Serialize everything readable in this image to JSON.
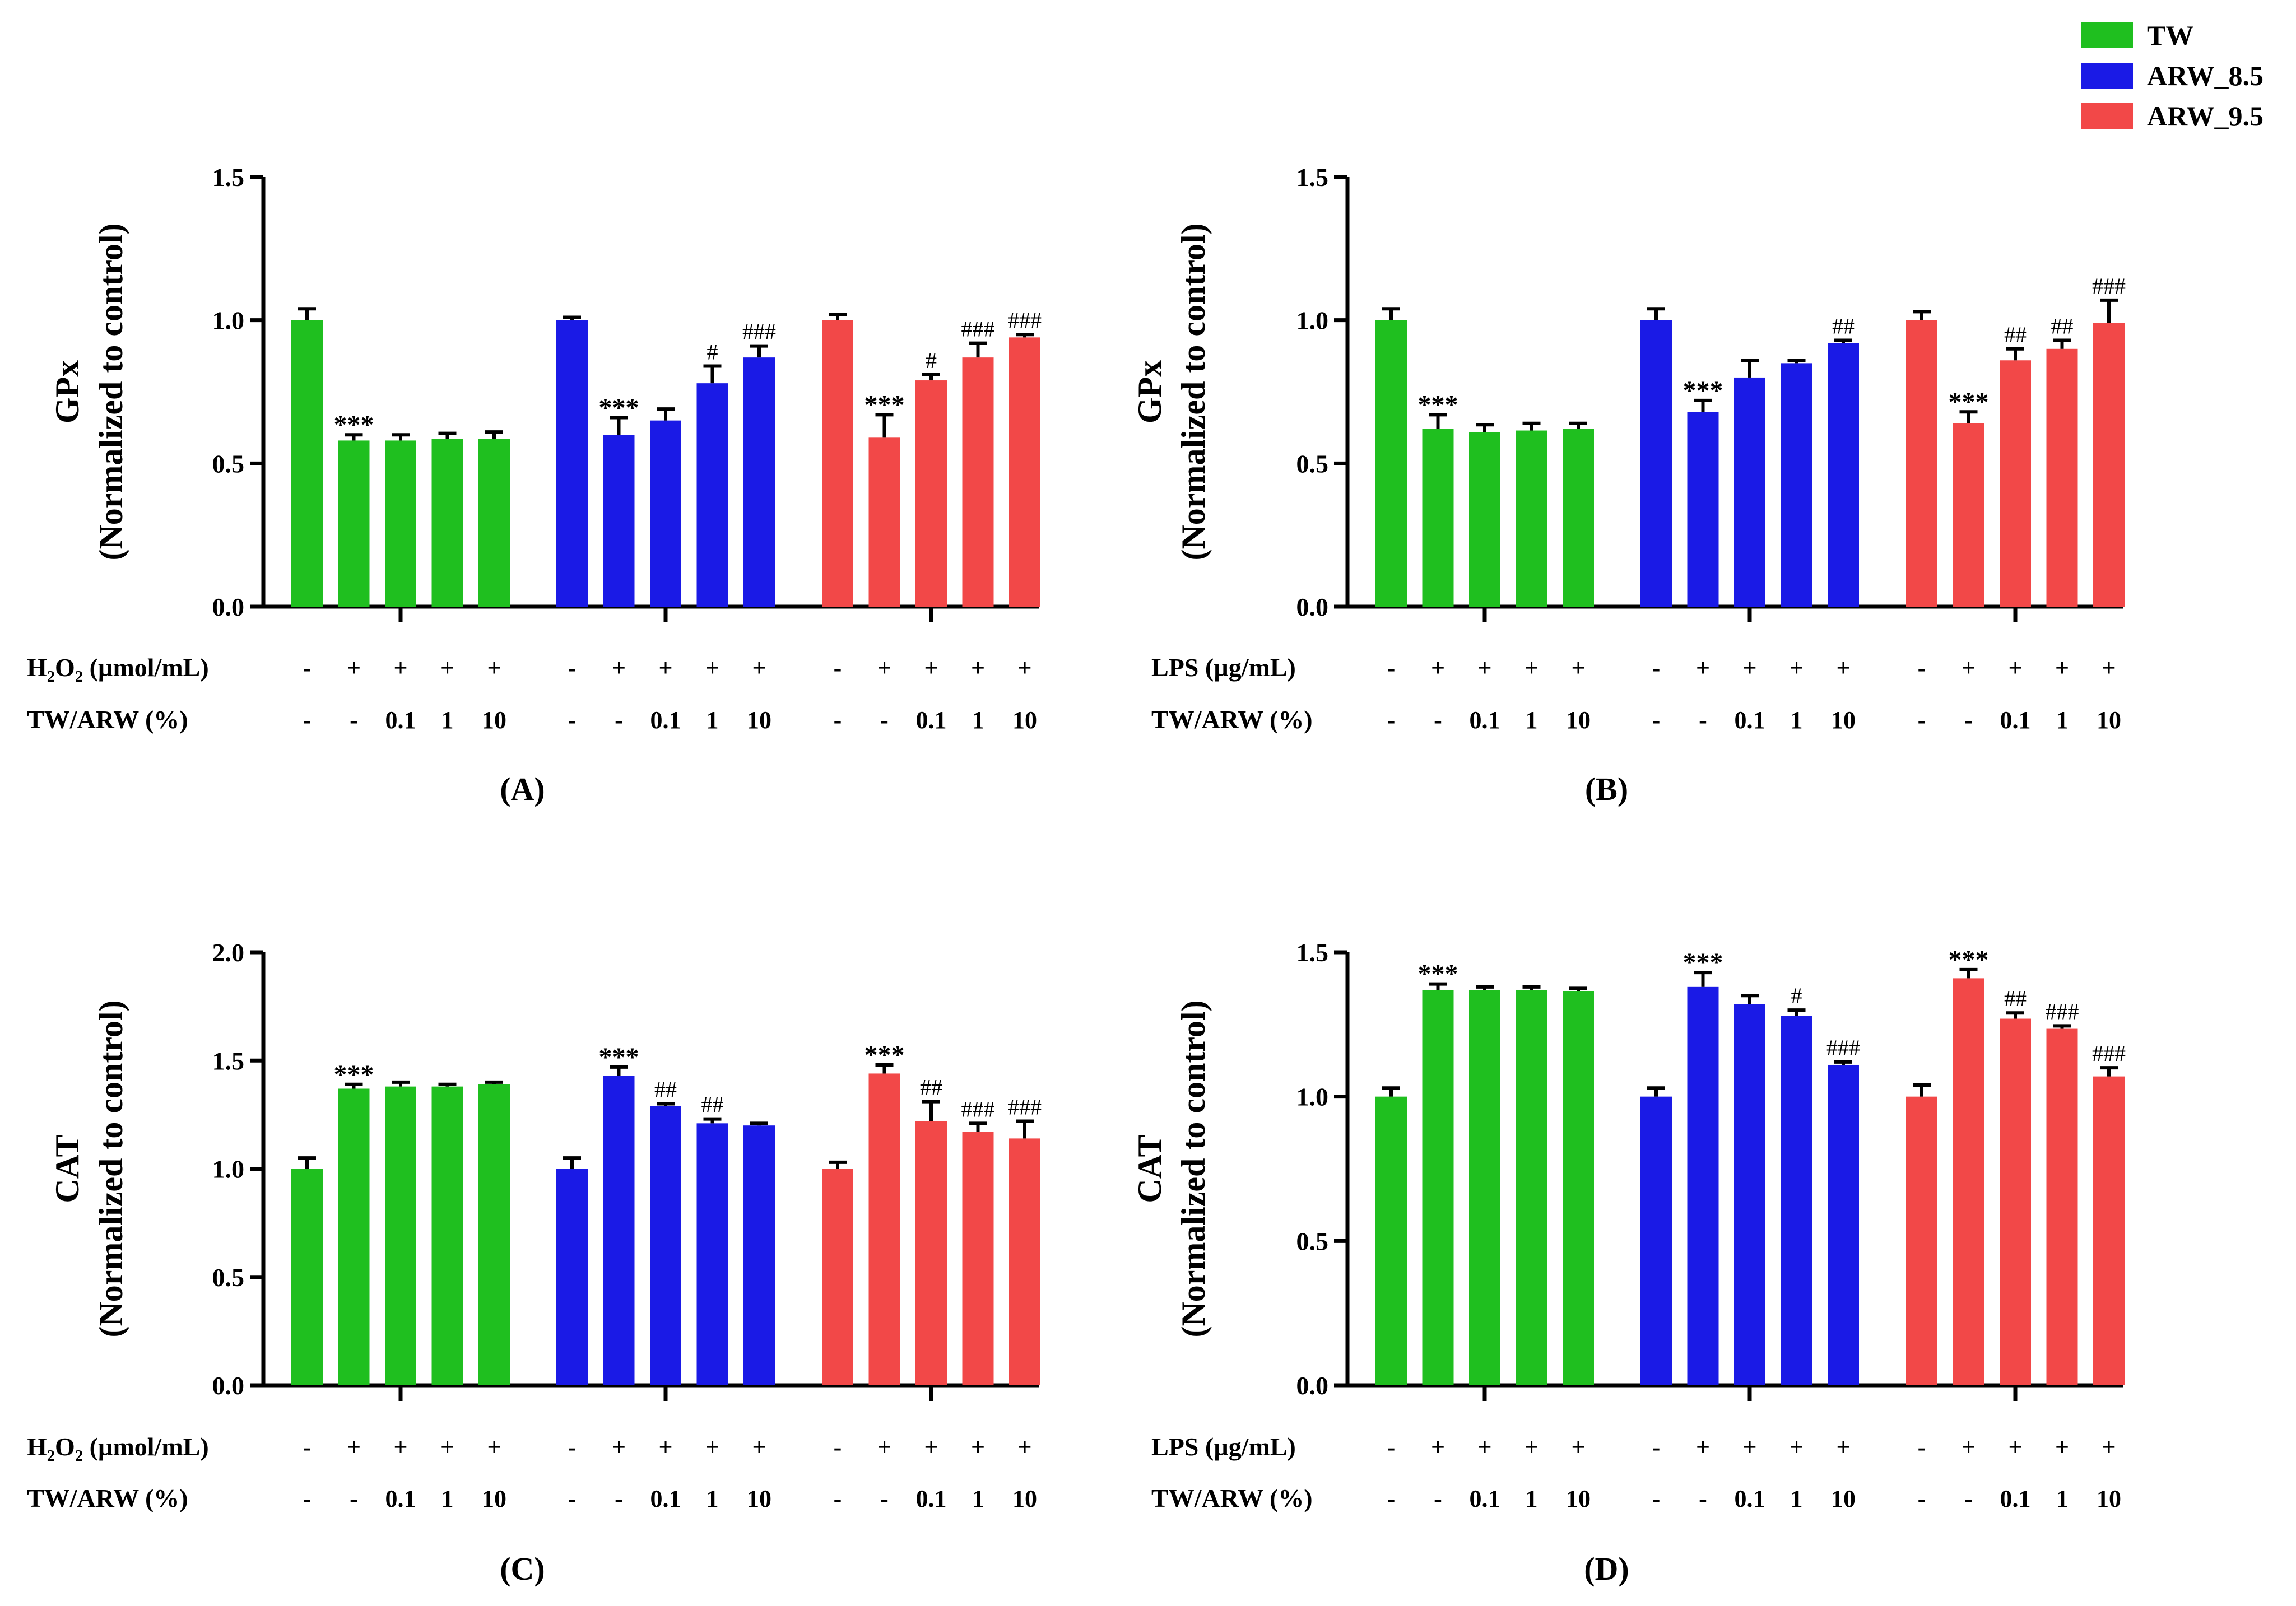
{
  "legend": [
    {
      "label": "TW",
      "color": "#1fbf1f"
    },
    {
      "label": "ARW_8.5",
      "color": "#1a1ae6"
    },
    {
      "label": "ARW_9.5",
      "color": "#f24848"
    }
  ],
  "chart_data": [
    {
      "panel": "(A)",
      "type": "bar",
      "ylabel_line1": "GPx",
      "ylabel_line2": "(Normalized to control)",
      "ylim": [
        0,
        1.5
      ],
      "yticks": [
        "0.0",
        "0.5",
        "1.0",
        "1.5"
      ],
      "row1_label": "H2O2 (µmol/mL)",
      "row1": [
        "-",
        "+",
        "+",
        "+",
        "+"
      ],
      "row2_label": "TW/ARW (%)",
      "row2": [
        "-",
        "-",
        "0.1",
        "1",
        "10"
      ],
      "series": [
        {
          "name": "TW",
          "values": [
            1.0,
            0.58,
            0.58,
            0.585,
            0.585
          ],
          "errors": [
            0.04,
            0.02,
            0.02,
            0.02,
            0.025
          ],
          "marks": [
            "",
            "***",
            "",
            "",
            ""
          ]
        },
        {
          "name": "ARW_8.5",
          "values": [
            1.0,
            0.6,
            0.65,
            0.78,
            0.87
          ],
          "errors": [
            0.01,
            0.06,
            0.04,
            0.06,
            0.04
          ],
          "marks": [
            "",
            "***",
            "",
            "#",
            "###"
          ]
        },
        {
          "name": "ARW_9.5",
          "values": [
            1.0,
            0.59,
            0.79,
            0.87,
            0.94
          ],
          "errors": [
            0.02,
            0.08,
            0.02,
            0.05,
            0.01
          ],
          "marks": [
            "",
            "***",
            "#",
            "###",
            "###"
          ]
        }
      ]
    },
    {
      "panel": "(B)",
      "type": "bar",
      "ylabel_line1": "GPx",
      "ylabel_line2": "(Normalized to control)",
      "ylim": [
        0,
        1.5
      ],
      "yticks": [
        "0.0",
        "0.5",
        "1.0",
        "1.5"
      ],
      "row1_label": "LPS (µg/mL)",
      "row1": [
        "-",
        "+",
        "+",
        "+",
        "+"
      ],
      "row2_label": "TW/ARW (%)",
      "row2": [
        "-",
        "-",
        "0.1",
        "1",
        "10"
      ],
      "series": [
        {
          "name": "TW",
          "values": [
            1.0,
            0.62,
            0.61,
            0.615,
            0.62
          ],
          "errors": [
            0.04,
            0.05,
            0.025,
            0.025,
            0.02
          ],
          "marks": [
            "",
            "***",
            "",
            "",
            ""
          ]
        },
        {
          "name": "ARW_8.5",
          "values": [
            1.0,
            0.68,
            0.8,
            0.85,
            0.92
          ],
          "errors": [
            0.04,
            0.04,
            0.06,
            0.01,
            0.01
          ],
          "marks": [
            "",
            "***",
            "",
            "",
            "##"
          ]
        },
        {
          "name": "ARW_9.5",
          "values": [
            1.0,
            0.64,
            0.86,
            0.9,
            0.99
          ],
          "errors": [
            0.03,
            0.04,
            0.04,
            0.03,
            0.08
          ],
          "marks": [
            "",
            "***",
            "##",
            "##",
            "###"
          ]
        }
      ]
    },
    {
      "panel": "(C)",
      "type": "bar",
      "ylabel_line1": "CAT",
      "ylabel_line2": "(Normalized to control)",
      "ylim": [
        0,
        2.0
      ],
      "yticks": [
        "0.0",
        "0.5",
        "1.0",
        "1.5",
        "2.0"
      ],
      "row1_label": "H2O2 (µmol/mL)",
      "row1": [
        "-",
        "+",
        "+",
        "+",
        "+"
      ],
      "row2_label": "TW/ARW (%)",
      "row2": [
        "-",
        "-",
        "0.1",
        "1",
        "10"
      ],
      "series": [
        {
          "name": "TW",
          "values": [
            1.0,
            1.37,
            1.38,
            1.38,
            1.39
          ],
          "errors": [
            0.05,
            0.02,
            0.02,
            0.01,
            0.01
          ],
          "marks": [
            "",
            "***",
            "",
            "",
            ""
          ]
        },
        {
          "name": "ARW_8.5",
          "values": [
            1.0,
            1.43,
            1.29,
            1.21,
            1.2
          ],
          "errors": [
            0.05,
            0.04,
            0.01,
            0.02,
            0.01
          ],
          "marks": [
            "",
            "***",
            "##",
            "##",
            ""
          ]
        },
        {
          "name": "ARW_9.5",
          "values": [
            1.0,
            1.44,
            1.22,
            1.17,
            1.14
          ],
          "errors": [
            0.03,
            0.04,
            0.09,
            0.04,
            0.08
          ],
          "marks": [
            "",
            "***",
            "##",
            "###",
            "###"
          ]
        }
      ]
    },
    {
      "panel": "(D)",
      "type": "bar",
      "ylabel_line1": "CAT",
      "ylabel_line2": "(Normalized to control)",
      "ylim": [
        0,
        1.5
      ],
      "yticks": [
        "0.0",
        "0.5",
        "1.0",
        "1.5"
      ],
      "row1_label": "LPS (µg/mL)",
      "row1": [
        "-",
        "+",
        "+",
        "+",
        "+"
      ],
      "row2_label": "TW/ARW (%)",
      "row2": [
        "-",
        "-",
        "0.1",
        "1",
        "10"
      ],
      "series": [
        {
          "name": "TW",
          "values": [
            1.0,
            1.37,
            1.37,
            1.37,
            1.365
          ],
          "errors": [
            0.03,
            0.02,
            0.01,
            0.01,
            0.01
          ],
          "marks": [
            "",
            "***",
            "",
            "",
            ""
          ]
        },
        {
          "name": "ARW_8.5",
          "values": [
            1.0,
            1.38,
            1.32,
            1.28,
            1.11
          ],
          "errors": [
            0.03,
            0.05,
            0.03,
            0.02,
            0.01
          ],
          "marks": [
            "",
            "***",
            "",
            "#",
            "###"
          ]
        },
        {
          "name": "ARW_9.5",
          "values": [
            1.0,
            1.41,
            1.27,
            1.235,
            1.07
          ],
          "errors": [
            0.04,
            0.03,
            0.02,
            0.01,
            0.03
          ],
          "marks": [
            "",
            "***",
            "##",
            "###",
            "###"
          ]
        }
      ]
    }
  ]
}
